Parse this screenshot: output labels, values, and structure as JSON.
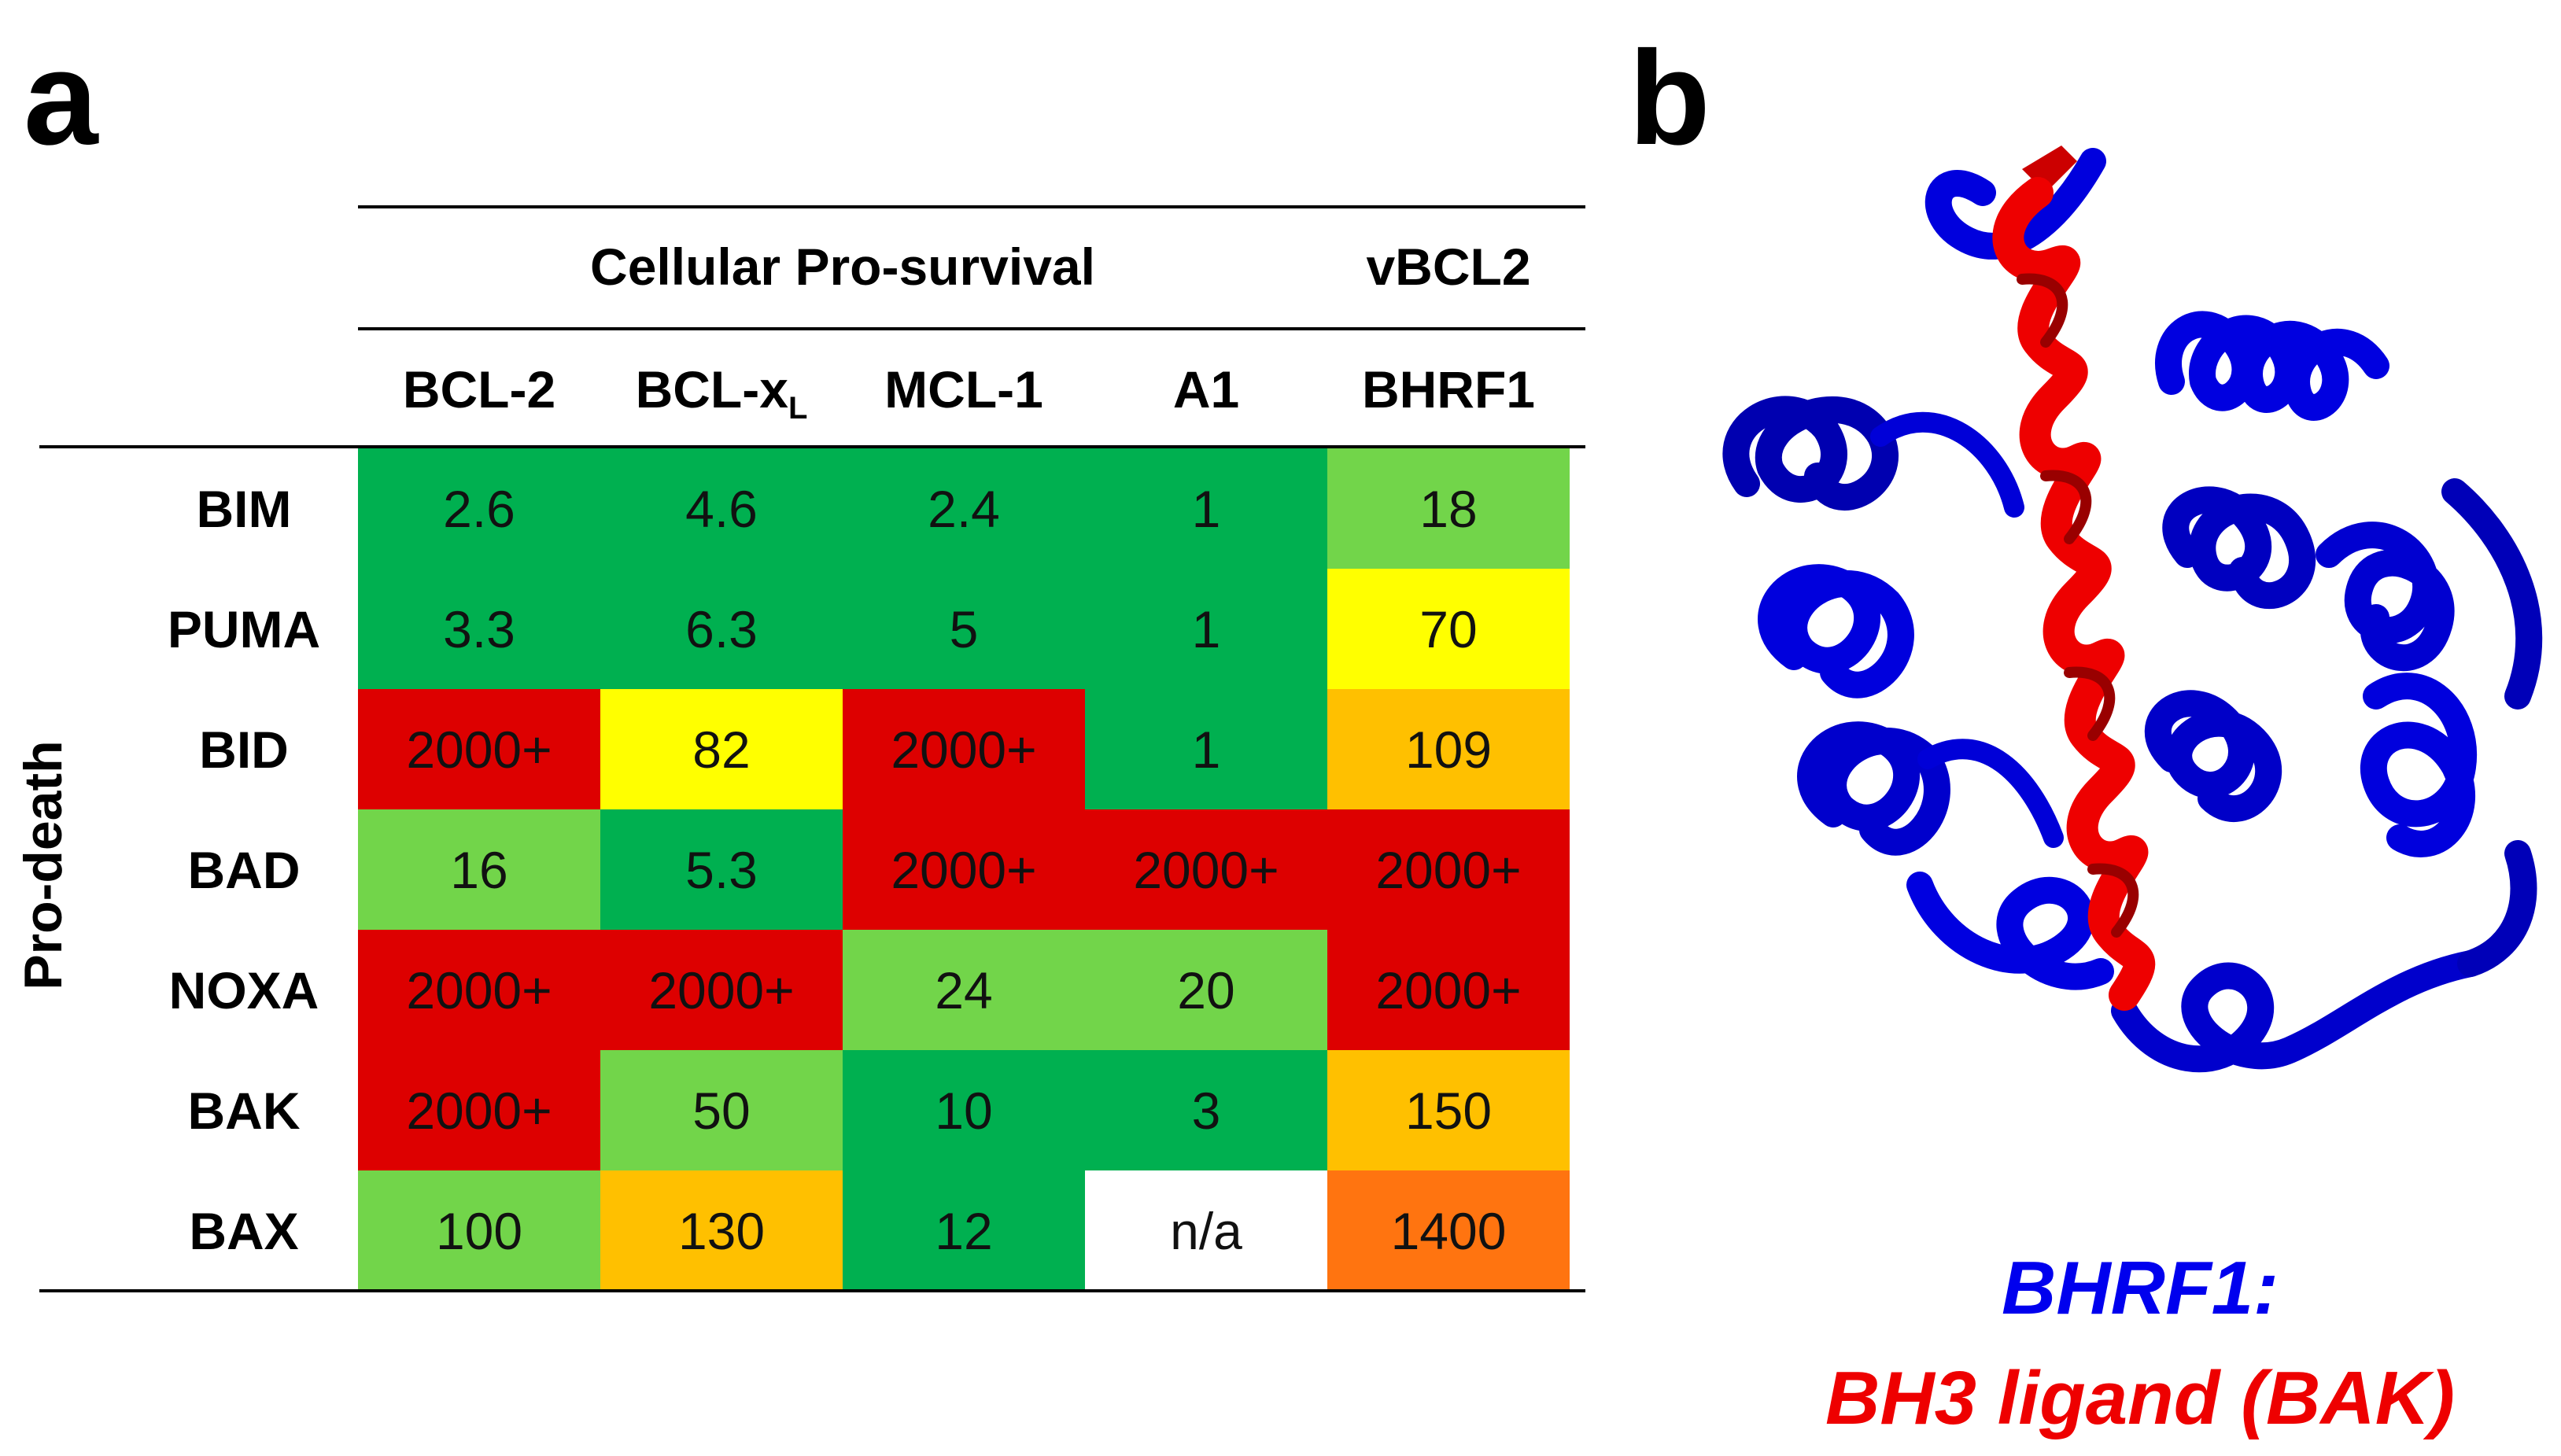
{
  "panels": {
    "a": "a",
    "b": "b"
  },
  "table": {
    "group_headers": [
      "Cellular Pro-survival",
      "vBCL2"
    ],
    "columns": [
      {
        "main": "BCL-2",
        "sub": ""
      },
      {
        "main": "BCL-x",
        "sub": "L"
      },
      {
        "main": "MCL-1",
        "sub": ""
      },
      {
        "main": "A1",
        "sub": ""
      },
      {
        "main": "BHRF1",
        "sub": ""
      }
    ],
    "side_label": "Pro-death",
    "rows": [
      {
        "label": "BIM",
        "values": [
          "2.6",
          "4.6",
          "2.4",
          "1",
          "18"
        ]
      },
      {
        "label": "PUMA",
        "values": [
          "3.3",
          "6.3",
          "5",
          "1",
          "70"
        ]
      },
      {
        "label": "BID",
        "values": [
          "2000+",
          "82",
          "2000+",
          "1",
          "109"
        ]
      },
      {
        "label": "BAD",
        "values": [
          "16",
          "5.3",
          "2000+",
          "2000+",
          "2000+"
        ]
      },
      {
        "label": "NOXA",
        "values": [
          "2000+",
          "2000+",
          "24",
          "20",
          "2000+"
        ]
      },
      {
        "label": "BAK",
        "values": [
          "2000+",
          "50",
          "10",
          "3",
          "150"
        ]
      },
      {
        "label": "BAX",
        "values": [
          "100",
          "130",
          "12",
          "n/a",
          "1400"
        ]
      }
    ],
    "colors": {
      "dark_green": "#00b050",
      "light_green": "#72d54a",
      "yellow": "#ffff00",
      "amber": "#ffc000",
      "orange": "#ff7410",
      "red": "#dd0000",
      "white": "#ffffff"
    },
    "cell_colors": [
      [
        "dark_green",
        "dark_green",
        "dark_green",
        "dark_green",
        "light_green"
      ],
      [
        "dark_green",
        "dark_green",
        "dark_green",
        "dark_green",
        "yellow"
      ],
      [
        "red",
        "yellow",
        "red",
        "dark_green",
        "amber"
      ],
      [
        "light_green",
        "dark_green",
        "red",
        "red",
        "red"
      ],
      [
        "red",
        "red",
        "light_green",
        "light_green",
        "red"
      ],
      [
        "red",
        "light_green",
        "dark_green",
        "dark_green",
        "amber"
      ],
      [
        "light_green",
        "amber",
        "dark_green",
        "white",
        "orange"
      ]
    ]
  },
  "structure": {
    "caption_line1": "BHRF1:",
    "caption_line2": "BH3 ligand (BAK)",
    "protein_color": "#0000dd",
    "ligand_color": "#ee0000"
  }
}
